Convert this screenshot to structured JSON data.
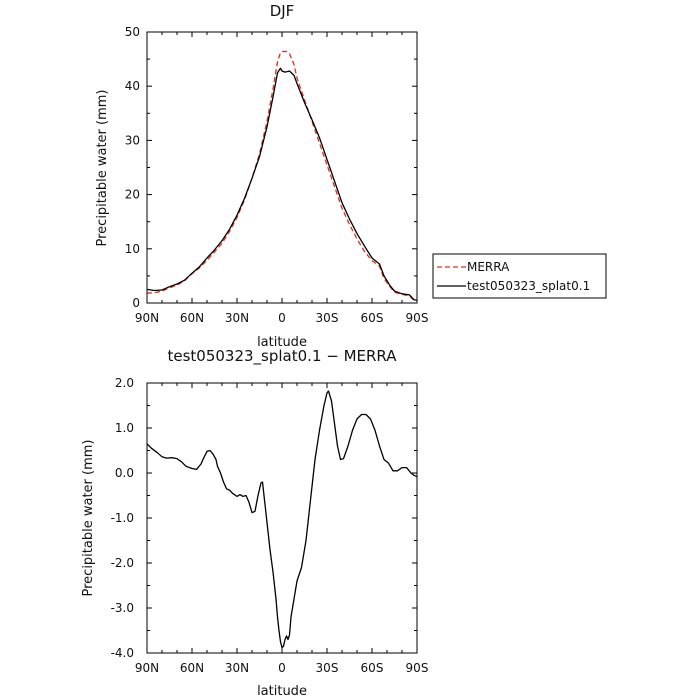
{
  "chart_data": [
    {
      "type": "line",
      "title": "DJF",
      "xlabel": "latitude",
      "ylabel": "Precipitable water (mm)",
      "x_ticks": [
        -90,
        -60,
        -30,
        0,
        30,
        60,
        90
      ],
      "x_tick_labels": [
        "90N",
        "60N",
        "30N",
        "0",
        "30S",
        "60S",
        "90S"
      ],
      "xlim": [
        -90,
        90
      ],
      "ylim": [
        0,
        50
      ],
      "y_ticks": [
        0,
        10,
        20,
        30,
        40,
        50
      ],
      "y_tick_labels": [
        "0",
        "10",
        "20",
        "30",
        "40",
        "50"
      ],
      "grid": false,
      "legend_position": "right",
      "series": [
        {
          "name": "MERRA",
          "color": "#e8291c",
          "dash": "dashed",
          "points": [
            [
              -90,
              1.8
            ],
            [
              -85,
              1.9
            ],
            [
              -80,
              2.2
            ],
            [
              -75,
              2.8
            ],
            [
              -70,
              3.3
            ],
            [
              -65,
              4.1
            ],
            [
              -60,
              5.4
            ],
            [
              -55,
              6.5
            ],
            [
              -50,
              7.9
            ],
            [
              -45,
              9.4
            ],
            [
              -40,
              11.0
            ],
            [
              -35,
              13.2
            ],
            [
              -30,
              15.8
            ],
            [
              -25,
              19.0
            ],
            [
              -20,
              23.0
            ],
            [
              -15,
              27.5
            ],
            [
              -10,
              33.5
            ],
            [
              -6,
              39.5
            ],
            [
              -3,
              44.5
            ],
            [
              -1,
              46.2
            ],
            [
              0,
              46.4
            ],
            [
              3,
              46.4
            ],
            [
              5,
              46.0
            ],
            [
              8,
              44.0
            ],
            [
              10,
              41.5
            ],
            [
              15,
              37.5
            ],
            [
              20,
              33.5
            ],
            [
              25,
              29.5
            ],
            [
              30,
              25.5
            ],
            [
              35,
              21.5
            ],
            [
              40,
              17.5
            ],
            [
              45,
              14.5
            ],
            [
              50,
              11.8
            ],
            [
              55,
              9.5
            ],
            [
              60,
              7.8
            ],
            [
              65,
              6.8
            ],
            [
              68,
              4.5
            ],
            [
              72,
              3.0
            ],
            [
              75,
              2.0
            ],
            [
              80,
              1.6
            ],
            [
              85,
              1.3
            ],
            [
              88,
              0.5
            ],
            [
              90,
              0.4
            ]
          ]
        },
        {
          "name": "test050323_splat0.1",
          "color": "#000000",
          "dash": "solid",
          "points": [
            [
              -90,
              2.5
            ],
            [
              -85,
              2.3
            ],
            [
              -80,
              2.4
            ],
            [
              -75,
              3.0
            ],
            [
              -70,
              3.5
            ],
            [
              -65,
              4.2
            ],
            [
              -60,
              5.5
            ],
            [
              -55,
              6.7
            ],
            [
              -50,
              8.3
            ],
            [
              -45,
              9.8
            ],
            [
              -40,
              11.5
            ],
            [
              -35,
              13.6
            ],
            [
              -30,
              16.2
            ],
            [
              -25,
              19.3
            ],
            [
              -20,
              23.0
            ],
            [
              -15,
              27.0
            ],
            [
              -10,
              32.5
            ],
            [
              -6,
              38.0
            ],
            [
              -3,
              42.5
            ],
            [
              -1,
              43.3
            ],
            [
              0,
              42.8
            ],
            [
              2,
              42.6
            ],
            [
              5,
              42.8
            ],
            [
              8,
              42.0
            ],
            [
              10,
              40.5
            ],
            [
              15,
              37.0
            ],
            [
              20,
              33.8
            ],
            [
              25,
              30.5
            ],
            [
              30,
              26.5
            ],
            [
              35,
              22.5
            ],
            [
              40,
              18.5
            ],
            [
              45,
              15.5
            ],
            [
              50,
              12.8
            ],
            [
              55,
              10.5
            ],
            [
              60,
              8.3
            ],
            [
              65,
              7.2
            ],
            [
              68,
              5.0
            ],
            [
              72,
              3.2
            ],
            [
              75,
              2.2
            ],
            [
              80,
              1.7
            ],
            [
              85,
              1.5
            ],
            [
              88,
              0.6
            ],
            [
              90,
              0.5
            ]
          ]
        }
      ]
    },
    {
      "type": "line",
      "title": "test050323_splat0.1 − MERRA",
      "xlabel": "latitude",
      "ylabel": "Precipitable water (mm)",
      "x_ticks": [
        -90,
        -60,
        -30,
        0,
        30,
        60,
        90
      ],
      "x_tick_labels": [
        "90N",
        "60N",
        "30N",
        "0",
        "30S",
        "60S",
        "90S"
      ],
      "xlim": [
        -90,
        90
      ],
      "ylim": [
        -4,
        2
      ],
      "y_ticks": [
        -4,
        -3,
        -2,
        -1,
        0,
        1,
        2
      ],
      "y_tick_labels": [
        "-4.0",
        "-3.0",
        "-2.0",
        "-1.0",
        "0.0",
        "1.0",
        "2.0"
      ],
      "grid": false,
      "series": [
        {
          "name": "test050323_splat0.1 − MERRA",
          "color": "#000000",
          "dash": "solid",
          "points": [
            [
              -90,
              0.65
            ],
            [
              -87,
              0.55
            ],
            [
              -83,
              0.45
            ],
            [
              -80,
              0.36
            ],
            [
              -77,
              0.33
            ],
            [
              -73,
              0.34
            ],
            [
              -70,
              0.32
            ],
            [
              -67,
              0.25
            ],
            [
              -64,
              0.15
            ],
            [
              -60,
              0.1
            ],
            [
              -57,
              0.08
            ],
            [
              -54,
              0.2
            ],
            [
              -52,
              0.35
            ],
            [
              -50,
              0.48
            ],
            [
              -48,
              0.5
            ],
            [
              -46,
              0.42
            ],
            [
              -44,
              0.3
            ],
            [
              -43,
              0.15
            ],
            [
              -41,
              0.0
            ],
            [
              -39,
              -0.2
            ],
            [
              -37,
              -0.35
            ],
            [
              -35,
              -0.38
            ],
            [
              -33,
              -0.45
            ],
            [
              -30,
              -0.52
            ],
            [
              -28,
              -0.48
            ],
            [
              -26,
              -0.52
            ],
            [
              -24,
              -0.5
            ],
            [
              -22,
              -0.65
            ],
            [
              -20,
              -0.88
            ],
            [
              -18,
              -0.85
            ],
            [
              -16,
              -0.5
            ],
            [
              -14,
              -0.22
            ],
            [
              -13,
              -0.2
            ],
            [
              -12,
              -0.5
            ],
            [
              -10,
              -1.1
            ],
            [
              -8,
              -1.7
            ],
            [
              -6,
              -2.2
            ],
            [
              -4,
              -2.8
            ],
            [
              -3,
              -3.2
            ],
            [
              -2,
              -3.5
            ],
            [
              -1,
              -3.75
            ],
            [
              0,
              -3.88
            ],
            [
              1,
              -3.85
            ],
            [
              2,
              -3.7
            ],
            [
              3,
              -3.62
            ],
            [
              4,
              -3.7
            ],
            [
              5,
              -3.6
            ],
            [
              6,
              -3.2
            ],
            [
              8,
              -2.8
            ],
            [
              10,
              -2.4
            ],
            [
              13,
              -2.1
            ],
            [
              16,
              -1.5
            ],
            [
              19,
              -0.6
            ],
            [
              22,
              0.3
            ],
            [
              25,
              0.95
            ],
            [
              28,
              1.5
            ],
            [
              30,
              1.78
            ],
            [
              31,
              1.82
            ],
            [
              33,
              1.6
            ],
            [
              35,
              1.1
            ],
            [
              37,
              0.6
            ],
            [
              39,
              0.3
            ],
            [
              41,
              0.32
            ],
            [
              44,
              0.6
            ],
            [
              47,
              0.95
            ],
            [
              50,
              1.2
            ],
            [
              53,
              1.3
            ],
            [
              56,
              1.3
            ],
            [
              59,
              1.2
            ],
            [
              62,
              0.95
            ],
            [
              65,
              0.6
            ],
            [
              68,
              0.3
            ],
            [
              71,
              0.22
            ],
            [
              74,
              0.05
            ],
            [
              77,
              0.05
            ],
            [
              80,
              0.12
            ],
            [
              83,
              0.12
            ],
            [
              86,
              0.0
            ],
            [
              88,
              -0.05
            ],
            [
              90,
              -0.08
            ]
          ]
        }
      ]
    }
  ]
}
